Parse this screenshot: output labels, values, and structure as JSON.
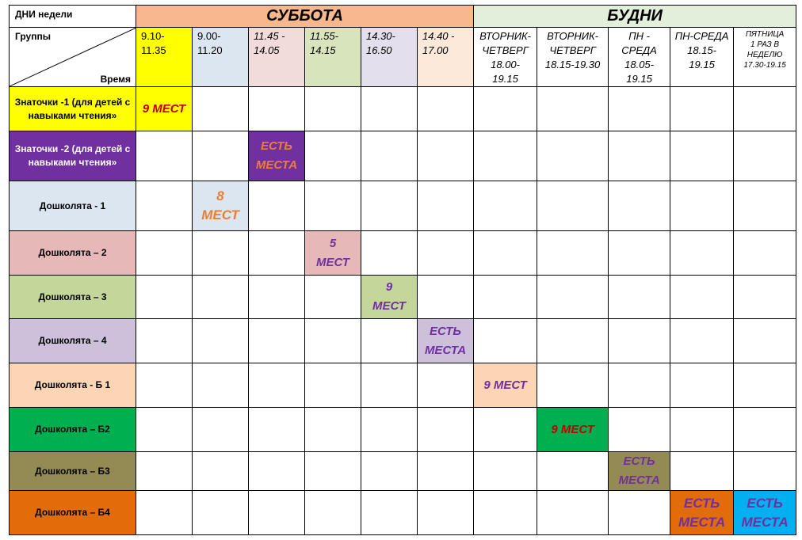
{
  "header": {
    "days_label": "ДНИ недели",
    "saturday": "СУББОТА",
    "weekdays": "БУДНИ",
    "groups_label": "Группы",
    "time_label": "Время"
  },
  "times": [
    {
      "line1": "9.10-",
      "line2": "11.35",
      "line3": "",
      "line4": ""
    },
    {
      "line1": "9.00-",
      "line2": "11.20",
      "line3": "",
      "line4": ""
    },
    {
      "line1": "11.45 -",
      "line2": "14.05",
      "line3": "",
      "line4": ""
    },
    {
      "line1": "11.55-",
      "line2": "14.15",
      "line3": "",
      "line4": ""
    },
    {
      "line1": "14.30-",
      "line2": "16.50",
      "line3": "",
      "line4": ""
    },
    {
      "line1": "14.40 -",
      "line2": "17.00",
      "line3": "",
      "line4": ""
    },
    {
      "line1": "ВТОРНИК-",
      "line2": "ЧЕТВЕРГ",
      "line3": "18.00-",
      "line4": "19.15"
    },
    {
      "line1": "ВТОРНИК-",
      "line2": "ЧЕТВЕРГ",
      "line3": "18.15-19.30",
      "line4": ""
    },
    {
      "line1": "ПН -",
      "line2": "СРЕДА",
      "line3": "18.05-",
      "line4": "19.15"
    },
    {
      "line1": "ПН-СРЕДА",
      "line2": "18.15-",
      "line3": "19.15",
      "line4": ""
    },
    {
      "line1": "ПЯТНИЦА",
      "line2": "1 РАЗ В",
      "line3": "НЕДЕЛЮ",
      "line4": "17.30-19.15"
    }
  ],
  "groups": [
    {
      "name": "Знаточки -1 (для детей с навыками чтения»",
      "seats": "9 МЕСТ"
    },
    {
      "name": "Знаточки -2 (для детей с навыками чтения»",
      "seats_line1": "ЕСТЬ",
      "seats_line2": "МЕСТА"
    },
    {
      "name": "Дошколята - 1",
      "seats_line1": "8",
      "seats_line2": "МЕСТ"
    },
    {
      "name": "Дошколята – 2",
      "seats_line1": "5",
      "seats_line2": "МЕСТ"
    },
    {
      "name": "Дошколята – 3",
      "seats_line1": "9",
      "seats_line2": "МЕСТ"
    },
    {
      "name": "Дошколята – 4",
      "seats_line1": "ЕСТЬ",
      "seats_line2": "МЕСТА"
    },
    {
      "name": "Дошколята - Б 1",
      "seats": "9 МЕСТ"
    },
    {
      "name": "Дошколята – Б2",
      "seats": "9 МЕСТ"
    },
    {
      "name": "Дошколята – Б3",
      "seats_line1": "ЕСТЬ",
      "seats_line2": "МЕСТА"
    },
    {
      "name": "Дошколята – Б4",
      "seats_line1": "ЕСТЬ",
      "seats_line2": "МЕСТА",
      "seats2_line1": "ЕСТЬ",
      "seats2_line2": "МЕСТА"
    }
  ],
  "colors": {
    "saturday_header": "#f9b78e",
    "weekdays_header": "#e2efda",
    "yellow": "#ffff00",
    "lightblue": "#dce6f1",
    "pink": "#f2dcdb",
    "green_light": "#d8e4bc",
    "lavender": "#e4dfec",
    "peach": "#fde9d9",
    "purple": "#7030a0",
    "rose": "#e6b8b7",
    "olive_light": "#c4d79b",
    "lilac": "#ccc0da",
    "apricot": "#fcd5b4",
    "green": "#00b050",
    "olive": "#948a54",
    "orange": "#e26b0a",
    "sky": "#00b0f0"
  }
}
